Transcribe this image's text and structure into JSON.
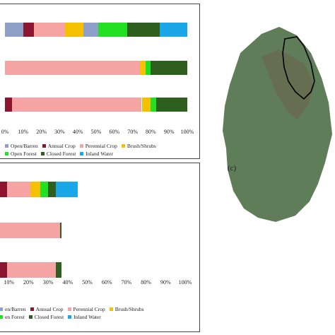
{
  "colors": {
    "Open/Barren": "#8ea0c8",
    "Annual Crop": "#8c1530",
    "Perennial Crop": "#f5a3a3",
    "Brush/Shrubs": "#f5c000",
    "Open Forest": "#22e022",
    "Closed Forest": "#2f5f1f",
    "Inland Water": "#1aa7e8"
  },
  "map_label": "(c)",
  "chart_data": [
    {
      "type": "bar",
      "orientation": "horizontal",
      "stacked": true,
      "xlim": [
        0,
        100
      ],
      "ticks": [
        "0%",
        "10%",
        "20%",
        "30%",
        "40%",
        "50%",
        "60%",
        "70%",
        "80%",
        "90%",
        "100%"
      ],
      "legend": [
        [
          "Open/Barren",
          "Annual Crop",
          "Perennial Crop",
          "Brush/Shrubs"
        ],
        [
          "Open Forest",
          "Closed Forest",
          "Inland Water"
        ]
      ],
      "rows": [
        {
          "segments": [
            [
              "Open/Barren",
              10
            ],
            [
              "Annual Crop",
              6
            ],
            [
              "Perennial Crop",
              17
            ],
            [
              "Brush/Shrubs",
              10
            ],
            [
              "Open/Barren",
              8
            ],
            [
              "Open Forest",
              16
            ],
            [
              "Closed Forest",
              18
            ],
            [
              "Inland Water",
              15
            ]
          ]
        },
        {
          "segments": [
            [
              "Perennial Crop",
              74
            ],
            [
              "Brush/Shrubs",
              3
            ],
            [
              "Open Forest",
              3
            ],
            [
              "Closed Forest",
              20
            ]
          ]
        },
        {
          "segments": [
            [
              "Annual Crop",
              4
            ],
            [
              "Perennial Crop",
              71
            ],
            [
              "Brush/Shrubs",
              5
            ],
            [
              "Open Forest",
              3
            ],
            [
              "Closed Forest",
              17
            ]
          ]
        }
      ]
    },
    {
      "type": "bar",
      "orientation": "horizontal",
      "stacked": true,
      "xlim": [
        0,
        100
      ],
      "ticks": [
        "10%",
        "20%",
        "30%",
        "40%",
        "50%",
        "60%",
        "70%",
        "80%",
        "90%",
        "100%"
      ],
      "legend": [
        [
          "en/Barren",
          "Annual Crop",
          "Perennial Crop",
          "Brush/Shrubs"
        ],
        [
          "en Forest",
          "Closed Forest",
          "Inland Water"
        ]
      ],
      "rows": [
        {
          "segments": [
            [
              "Open/Barren",
              1
            ],
            [
              "Annual Crop",
              2
            ],
            [
              "Annual Crop",
              6
            ],
            [
              "Perennial Crop",
              12
            ],
            [
              "Brush/Shrubs",
              5
            ],
            [
              "Open Forest",
              4
            ],
            [
              "Closed Forest",
              4
            ],
            [
              "Inland Water",
              11
            ]
          ]
        },
        {
          "segments": [
            [
              "Annual Crop",
              3
            ],
            [
              "Perennial Crop",
              33
            ],
            [
              "Closed Forest",
              1
            ]
          ]
        },
        {
          "segments": [
            [
              "Annual Crop",
              9
            ],
            [
              "Perennial Crop",
              25
            ],
            [
              "Closed Forest",
              3
            ]
          ]
        }
      ]
    }
  ]
}
